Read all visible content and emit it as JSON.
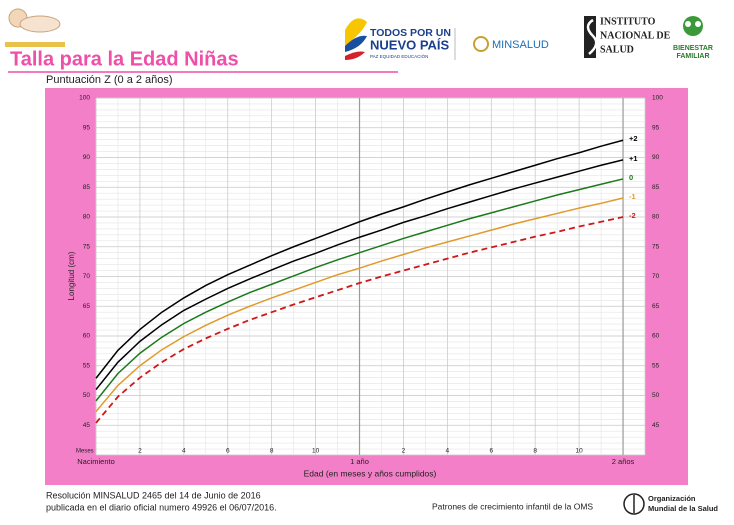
{
  "header": {
    "logo1_line1": "TODOS POR UN",
    "logo1_line2": "NUEVO PAÍS",
    "logo1_line3": "PAZ  EQUIDAD  EDUCACIÓN",
    "logo2": "MINSALUD",
    "logo3_line1": "INSTITUTO",
    "logo3_line2": "NACIONAL DE",
    "logo3_line3": "SALUD",
    "logo4_line1": "BIENESTAR",
    "logo4_line2": "FAMILIAR"
  },
  "footer": {
    "line1": "Resolución MINSALUD 2465 del 14 de Junio de 2016",
    "line2": "publicada en el diario oficial numero 49926 el 06/07/2016.",
    "source": "Patrones de crecimiento infantil de la OMS",
    "org_line1": "Organización",
    "org_line2": "Mundial de la Salud"
  },
  "chart_data": {
    "type": "line",
    "title": "Talla para la Edad Niñas",
    "subtitle": "Puntuación Z (0 a 2 años)",
    "x_label": "Edad (en meses y años cumplidos)",
    "y_label": "Longitud (cm)",
    "x_unit_label": "Meses",
    "x": [
      0,
      1,
      2,
      3,
      4,
      5,
      6,
      7,
      8,
      9,
      10,
      11,
      12,
      13,
      14,
      15,
      16,
      17,
      18,
      19,
      20,
      21,
      22,
      23,
      24
    ],
    "series": [
      {
        "name": "+2",
        "color": "#000000",
        "values": [
          52.9,
          57.6,
          61.1,
          64.0,
          66.4,
          68.5,
          70.3,
          71.9,
          73.5,
          75.0,
          76.4,
          77.8,
          79.2,
          80.5,
          81.7,
          83.0,
          84.2,
          85.4,
          86.5,
          87.6,
          88.7,
          89.8,
          90.8,
          91.9,
          92.9
        ]
      },
      {
        "name": "+1",
        "color": "#000000",
        "values": [
          51.0,
          55.6,
          59.1,
          61.9,
          64.3,
          66.2,
          68.0,
          69.6,
          71.1,
          72.6,
          73.9,
          75.3,
          76.6,
          77.8,
          79.1,
          80.2,
          81.4,
          82.5,
          83.6,
          84.7,
          85.7,
          86.7,
          87.7,
          88.7,
          89.6
        ]
      },
      {
        "name": "0",
        "color": "#1a7a1a",
        "values": [
          49.1,
          53.7,
          57.1,
          59.8,
          62.1,
          64.0,
          65.7,
          67.3,
          68.7,
          70.1,
          71.5,
          72.8,
          74.0,
          75.2,
          76.4,
          77.5,
          78.6,
          79.7,
          80.7,
          81.7,
          82.7,
          83.7,
          84.6,
          85.5,
          86.4
        ]
      },
      {
        "name": "-1",
        "color": "#e09a2a",
        "values": [
          47.3,
          51.7,
          55.0,
          57.7,
          59.9,
          61.8,
          63.5,
          65.0,
          66.4,
          67.7,
          69.0,
          70.3,
          71.4,
          72.6,
          73.7,
          74.8,
          75.8,
          76.8,
          77.8,
          78.8,
          79.7,
          80.6,
          81.5,
          82.3,
          83.2
        ]
      },
      {
        "name": "-2",
        "color": "#d01818",
        "dashed": true,
        "values": [
          45.4,
          49.8,
          53.0,
          55.6,
          57.8,
          59.6,
          61.2,
          62.7,
          64.0,
          65.3,
          66.5,
          67.7,
          68.9,
          70.0,
          71.0,
          72.0,
          73.0,
          74.0,
          74.9,
          75.8,
          76.7,
          77.5,
          78.4,
          79.2,
          80.0
        ]
      }
    ],
    "xlim": [
      0,
      25
    ],
    "ylim": [
      40,
      100
    ],
    "xticks": [
      {
        "value": 0,
        "label": "Nacimiento"
      },
      2,
      4,
      6,
      8,
      10,
      {
        "value": 12,
        "label": "1 año"
      },
      {
        "value": 14,
        "label": "2"
      },
      {
        "value": 16,
        "label": "4"
      },
      {
        "value": 18,
        "label": "6"
      },
      {
        "value": 20,
        "label": "8"
      },
      {
        "value": 22,
        "label": "10"
      },
      {
        "value": 24,
        "label": "2 años"
      }
    ],
    "yticks": [
      45,
      50,
      55,
      60,
      65,
      70,
      75,
      80,
      85,
      90,
      95,
      100
    ],
    "grid": true
  }
}
